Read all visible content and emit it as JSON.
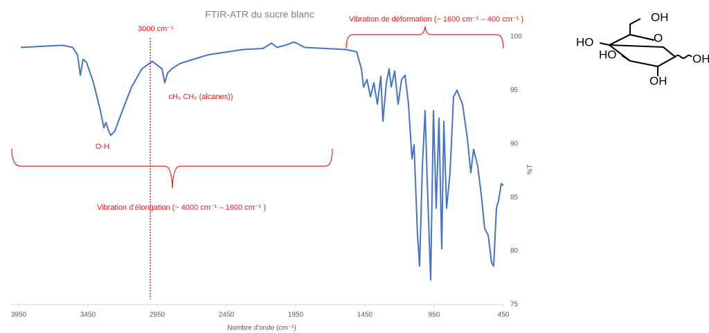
{
  "chart_data": {
    "type": "line",
    "title": "FTIR-ATR du sucre blanc",
    "x_label": "Nombre d'onde (cm⁻¹)",
    "y_label": "%T",
    "xlim": [
      4000,
      450
    ],
    "ylim": [
      75,
      100
    ],
    "xticks": [
      3950,
      3450,
      2950,
      2450,
      1950,
      1450,
      950,
      450
    ],
    "yticks": [
      75,
      80,
      85,
      90,
      95,
      100
    ],
    "x": [
      3935,
      3635,
      3560,
      3525,
      3505,
      3485,
      3460,
      3410,
      3360,
      3335,
      3320,
      3300,
      3285,
      3255,
      3210,
      3135,
      3060,
      2985,
      2945,
      2915,
      2895,
      2875,
      2845,
      2785,
      2685,
      2585,
      2435,
      2335,
      2185,
      2125,
      2085,
      2025,
      1960,
      1885,
      1735,
      1585,
      1510,
      1475,
      1460,
      1435,
      1410,
      1385,
      1360,
      1335,
      1320,
      1295,
      1275,
      1260,
      1235,
      1210,
      1185,
      1160,
      1135,
      1110,
      1095,
      1070,
      1055,
      1035,
      1015,
      1000,
      975,
      955,
      935,
      915,
      895,
      880,
      860,
      835,
      810,
      785,
      745,
      710,
      685,
      665,
      635,
      610,
      585,
      560,
      535,
      520,
      500,
      485,
      465,
      450
    ],
    "series": [
      {
        "name": "%T",
        "color": "#4472c4",
        "values": [
          99.0,
          99.2,
          99.0,
          98.3,
          96.4,
          97.9,
          97.6,
          95.7,
          93.1,
          91.5,
          92.0,
          91.2,
          90.8,
          91.2,
          92.8,
          95.3,
          97.0,
          97.7,
          97.3,
          97.0,
          95.7,
          96.6,
          97.0,
          97.5,
          97.9,
          98.3,
          98.6,
          98.8,
          98.9,
          99.4,
          99.0,
          99.2,
          99.5,
          99.0,
          98.9,
          98.8,
          98.6,
          97.0,
          95.3,
          96.0,
          94.4,
          95.7,
          93.7,
          96.3,
          92.1,
          95.7,
          97.0,
          95.3,
          96.8,
          93.7,
          96.0,
          96.4,
          93.7,
          88.6,
          89.9,
          81.5,
          78.6,
          87.9,
          93.1,
          86.6,
          77.3,
          93.1,
          84.0,
          92.4,
          80.2,
          92.1,
          84.0,
          87.3,
          94.4,
          95.0,
          93.7,
          90.5,
          87.3,
          89.5,
          87.9,
          85.3,
          82.1,
          81.5,
          78.9,
          78.6,
          84.0,
          84.7,
          86.3,
          86.1
        ]
      }
    ],
    "reference_line": {
      "value": 3000,
      "label": "3000 cm⁻¹"
    },
    "annotations": [
      "O-H",
      "cH₃ CH₂ (alcanes))",
      "Vibration d’élongation (~ 4000 cm⁻¹ – 1600 cm⁻¹ )",
      "Vibration de déformation (~ 1600 cm⁻¹ – 400 cm⁻¹ )"
    ]
  },
  "structure": {
    "labels": [
      "OH",
      "O",
      "HO",
      "HO",
      "OH",
      "OH"
    ]
  }
}
